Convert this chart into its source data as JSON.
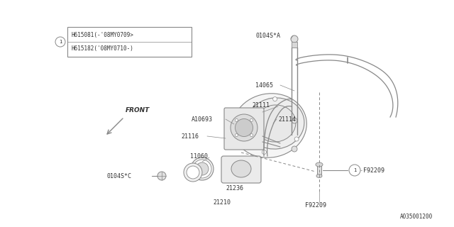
{
  "background_color": "#ffffff",
  "line_color": "#888888",
  "text_color": "#333333",
  "diagram_id": "A035001200",
  "box_label_line1": "H615081(-'08MY0709>",
  "box_label_line2": "H615182('08MY0710-)",
  "figsize": [
    6.4,
    3.2
  ],
  "dpi": 100
}
